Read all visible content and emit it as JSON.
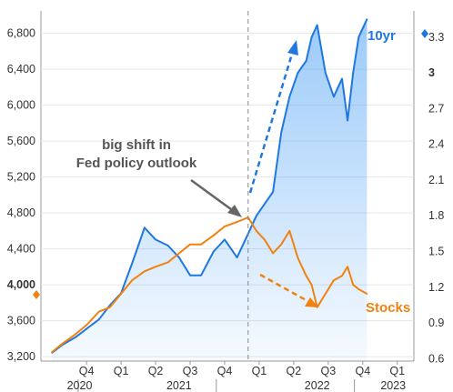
{
  "chart_data": {
    "type": "line",
    "title": "",
    "left_axis": {
      "ticks": [
        "3,200",
        "3,600",
        "4,000",
        "4,400",
        "4,800",
        "5,200",
        "5,600",
        "6,000",
        "6,400",
        "6,800"
      ],
      "ylim": [
        3150,
        7050
      ]
    },
    "right_axis": {
      "ticks": [
        "0.6",
        "0.9",
        "1.2",
        "1.5",
        "1.8",
        "2.1",
        "2.4",
        "2.7",
        "3",
        "3.3"
      ],
      "ylim": [
        0.58,
        3.52
      ]
    },
    "x_quarters": [
      "Q4",
      "Q1",
      "Q2",
      "Q3",
      "Q4",
      "Q1",
      "Q2",
      "Q3",
      "Q4",
      "Q1"
    ],
    "x_years": [
      "2020",
      "2021",
      "2022",
      "2023"
    ],
    "series": [
      {
        "name": "10yr",
        "axis": "right",
        "color": "#1f78e0",
        "x": [
          2020.58,
          2020.66,
          2020.75,
          2020.83,
          2020.92,
          2021.0,
          2021.08,
          2021.16,
          2021.25,
          2021.33,
          2021.42,
          2021.5,
          2021.58,
          2021.66,
          2021.75,
          2021.83,
          2021.92,
          2022.0,
          2022.06,
          2022.12,
          2022.18,
          2022.24,
          2022.3,
          2022.36,
          2022.42,
          2022.46,
          2022.5,
          2022.56,
          2022.62,
          2022.68,
          2022.72,
          2022.76,
          2022.8,
          2022.86
        ],
        "values": [
          0.65,
          0.72,
          0.78,
          0.85,
          0.93,
          1.05,
          1.15,
          1.4,
          1.7,
          1.6,
          1.55,
          1.45,
          1.3,
          1.3,
          1.5,
          1.6,
          1.45,
          1.65,
          1.8,
          1.9,
          2.0,
          2.5,
          2.8,
          3.0,
          3.1,
          3.3,
          3.4,
          3.0,
          2.8,
          2.95,
          2.6,
          3.0,
          3.3,
          3.45
        ]
      },
      {
        "name": "Stocks",
        "axis": "left",
        "color": "#f0820f",
        "x": [
          2020.58,
          2020.66,
          2020.75,
          2020.83,
          2020.92,
          2021.0,
          2021.08,
          2021.16,
          2021.25,
          2021.33,
          2021.42,
          2021.5,
          2021.58,
          2021.66,
          2021.75,
          2021.83,
          2021.92,
          2022.0,
          2022.06,
          2022.12,
          2022.18,
          2022.24,
          2022.3,
          2022.36,
          2022.42,
          2022.46,
          2022.5,
          2022.56,
          2022.62,
          2022.68,
          2022.72,
          2022.76,
          2022.8,
          2022.86
        ],
        "values": [
          3250,
          3350,
          3450,
          3550,
          3700,
          3750,
          3900,
          4050,
          4150,
          4200,
          4250,
          4350,
          4450,
          4450,
          4550,
          4650,
          4700,
          4750,
          4600,
          4500,
          4350,
          4450,
          4600,
          4300,
          4100,
          4000,
          3750,
          3900,
          4050,
          4100,
          4200,
          4000,
          3950,
          3900
        ]
      }
    ],
    "annotations": [
      {
        "text": [
          "big shift in",
          "Fed policy outlook"
        ]
      }
    ],
    "event_line_x": 2022.0,
    "grid": true,
    "legend": "labels at right edge"
  }
}
